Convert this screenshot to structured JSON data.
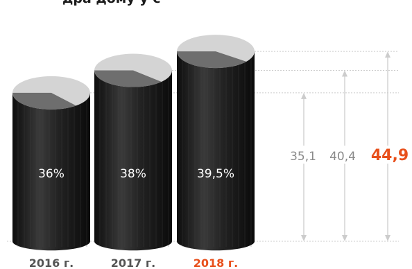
{
  "chart_data": {
    "type": "bar",
    "title_fragment": "дра дому у с",
    "categories": [
      "2016 г.",
      "2017 г.",
      "2018 г."
    ],
    "values": [
      35.1,
      40.4,
      44.9
    ],
    "value_labels": [
      "35,1",
      "40,4",
      "44,9"
    ],
    "percent_values": [
      36,
      38,
      39.5
    ],
    "percent_labels": [
      "36%",
      "38%",
      "39,5%"
    ],
    "highlight_index": 2,
    "pie_share_on_top": [
      36,
      38,
      39.5
    ]
  },
  "colors": {
    "cylinder_body": "#222222",
    "cylinder_top": "#d4d4d4",
    "cylinder_slice": "#6e6e6e",
    "highlight": "#e8501c",
    "category_text": "#555555",
    "value_text": "#8a8a8a",
    "guide": "#cccccc"
  }
}
